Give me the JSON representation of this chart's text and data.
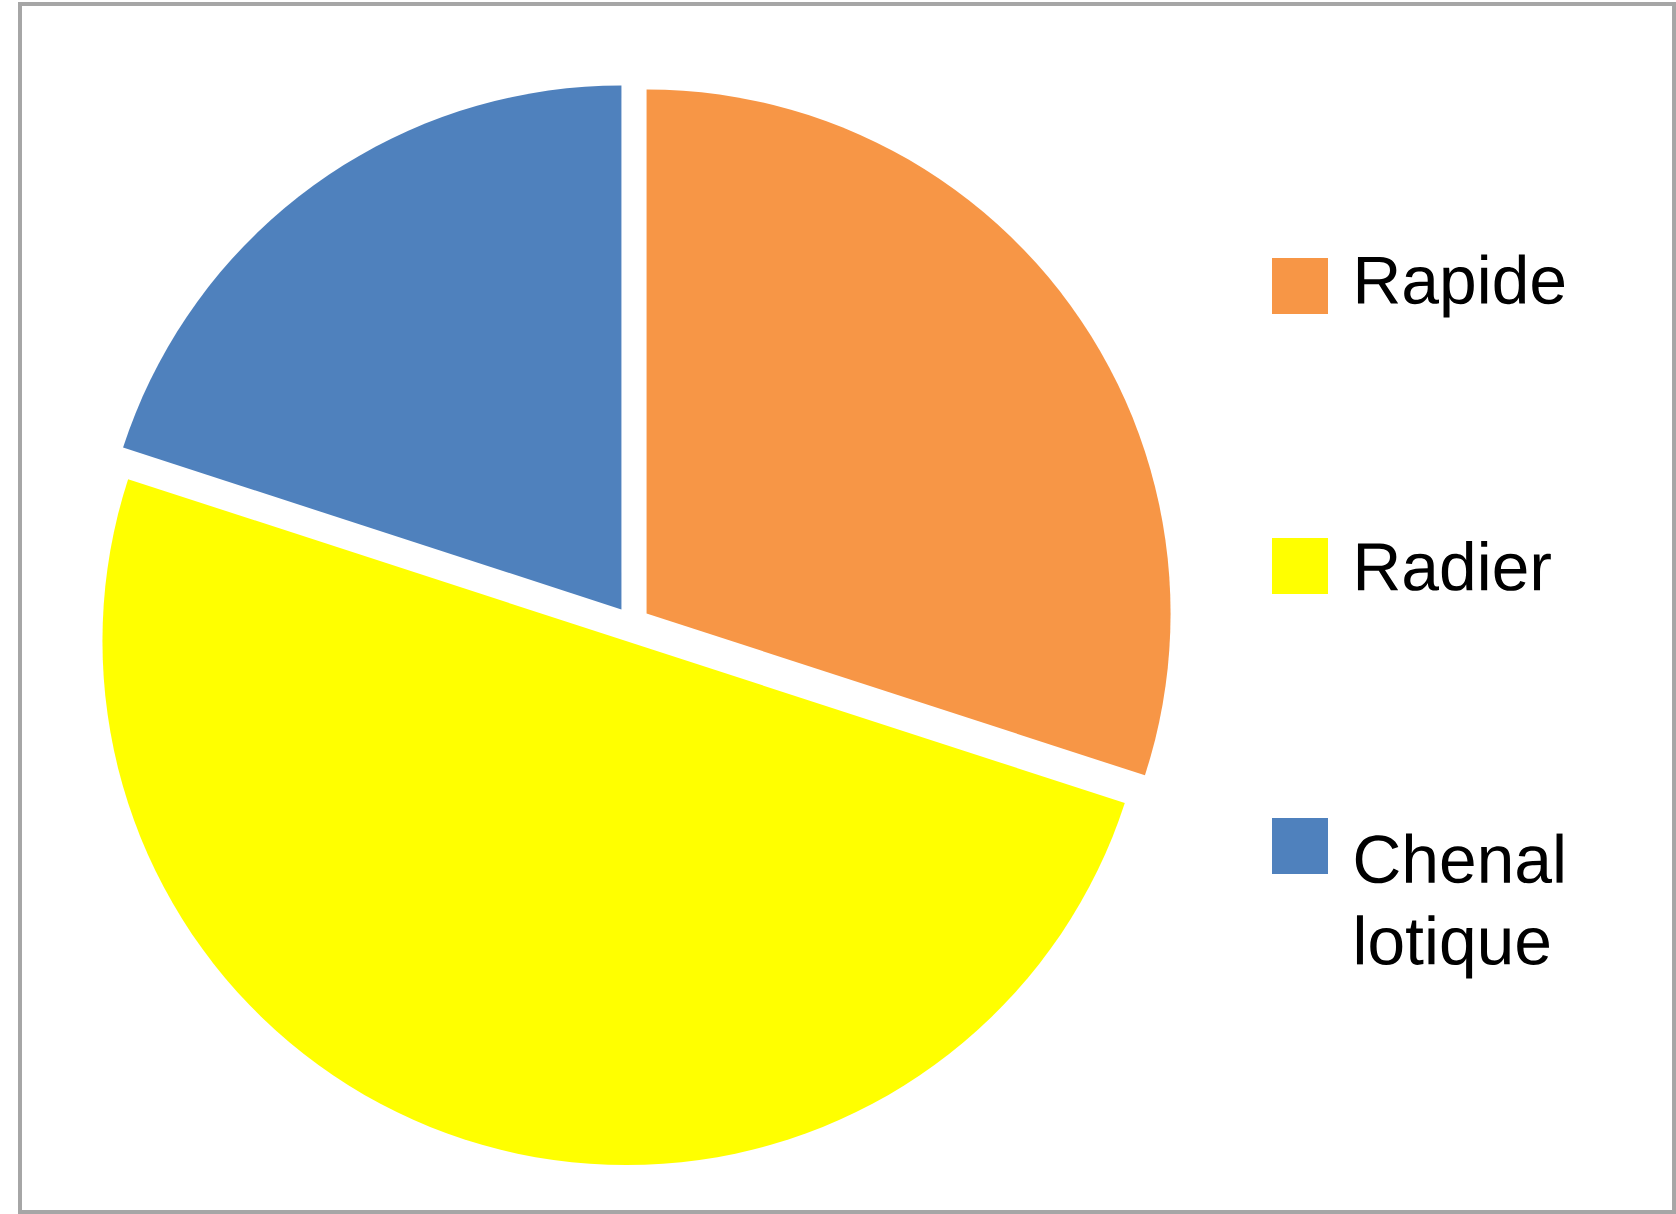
{
  "chart_data": {
    "type": "pie",
    "categories": [
      "Rapide",
      "Radier",
      "Chenal lotique"
    ],
    "values": [
      30,
      50,
      20
    ],
    "colors": [
      "#f79646",
      "#ffff00",
      "#4f81bd"
    ],
    "legend": "right"
  }
}
